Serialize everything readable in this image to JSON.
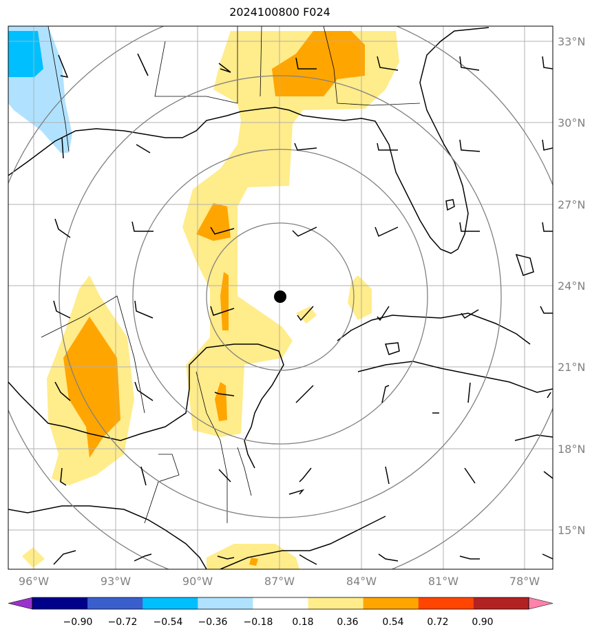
{
  "title": "2024100800 F024",
  "lat_labels": [
    "33°N",
    "30°N",
    "27°N",
    "24°N",
    "21°N",
    "18°N",
    "15°N"
  ],
  "lon_labels": [
    "96°W",
    "93°W",
    "90°W",
    "87°W",
    "84°W",
    "81°W",
    "78°W"
  ],
  "colorbar": {
    "ticks": [
      "−0.90",
      "−0.72",
      "−0.54",
      "−0.36",
      "−0.18",
      "0.18",
      "0.36",
      "0.54",
      "0.72",
      "0.90"
    ],
    "colors": [
      "#9932cc",
      "#00008b",
      "#3a5fcd",
      "#00bfff",
      "#b0e2ff",
      "#ffffff",
      "#ffec8b",
      "#ffa500",
      "#ff4500",
      "#b22222",
      "#ff82ab"
    ]
  },
  "colors": {
    "fill_low": "#ffec8b",
    "fill_mid": "#ffa500",
    "fill_neg_light": "#b0e2ff",
    "fill_neg_mid": "#00bfff",
    "grid": "#b0b0b0",
    "rings": "#808080"
  },
  "center_marker": "storm-center-dot"
}
